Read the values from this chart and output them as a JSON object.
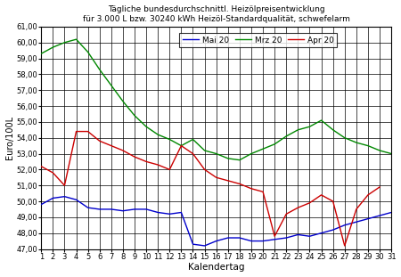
{
  "title_line1": "Tägliche bundesdurchschnittl. Heizölpreisentwicklung",
  "title_line2": "für 3.000 L bzw. 30240 kWh Heizöl-Standardqualität, schwefelarm",
  "xlabel": "Kalendertag",
  "ylabel": "Euro/100L",
  "ylim": [
    47.0,
    61.0
  ],
  "ytick_vals": [
    47.0,
    48.0,
    49.0,
    50.0,
    51.0,
    52.0,
    53.0,
    54.0,
    55.0,
    56.0,
    57.0,
    58.0,
    59.0,
    60.0,
    61.0
  ],
  "ytick_labels": [
    "47,00",
    "48,00",
    "49,00",
    "50,00",
    "51,00",
    "52,00",
    "53,00",
    "54,00",
    "55,00",
    "56,00",
    "57,00",
    "58,00",
    "59,00",
    "60,00",
    "61,00"
  ],
  "xticks": [
    1,
    2,
    3,
    4,
    5,
    6,
    7,
    8,
    9,
    10,
    11,
    12,
    13,
    14,
    15,
    16,
    17,
    18,
    19,
    20,
    21,
    22,
    23,
    24,
    25,
    26,
    27,
    28,
    29,
    30,
    31
  ],
  "series": {
    "Mai 20": {
      "color": "#0000cc",
      "days": [
        1,
        2,
        3,
        4,
        5,
        6,
        7,
        8,
        9,
        10,
        11,
        12,
        13,
        14,
        15,
        16,
        17,
        18,
        19,
        20,
        21,
        22,
        23,
        24,
        25,
        26,
        27,
        28,
        29,
        30,
        31
      ],
      "values": [
        49.8,
        50.2,
        50.3,
        50.1,
        49.6,
        49.5,
        49.5,
        49.4,
        49.5,
        49.5,
        49.3,
        49.2,
        49.3,
        47.3,
        47.2,
        47.5,
        47.7,
        47.7,
        47.5,
        47.5,
        47.6,
        47.7,
        47.9,
        47.8,
        48.0,
        48.2,
        48.5,
        48.7,
        48.9,
        49.1,
        49.3
      ]
    },
    "Mrz 20": {
      "color": "#008800",
      "days": [
        1,
        2,
        3,
        4,
        5,
        6,
        7,
        8,
        9,
        10,
        11,
        12,
        13,
        14,
        15,
        16,
        17,
        18,
        19,
        20,
        21,
        22,
        23,
        24,
        25,
        26,
        27,
        28,
        29,
        30,
        31
      ],
      "values": [
        59.3,
        59.7,
        60.0,
        60.2,
        59.4,
        58.3,
        57.3,
        56.3,
        55.4,
        54.7,
        54.2,
        53.9,
        53.5,
        53.9,
        53.2,
        53.0,
        52.7,
        52.6,
        53.0,
        53.3,
        53.6,
        54.1,
        54.5,
        54.7,
        55.1,
        54.5,
        54.0,
        53.7,
        53.5,
        53.2,
        53.0
      ]
    },
    "Apr 20": {
      "color": "#cc0000",
      "days": [
        1,
        2,
        3,
        4,
        5,
        6,
        7,
        8,
        9,
        10,
        11,
        12,
        13,
        14,
        15,
        16,
        17,
        18,
        19,
        20,
        21,
        22,
        23,
        24,
        25,
        26,
        27,
        28,
        29,
        30
      ],
      "values": [
        52.2,
        51.8,
        51.0,
        54.4,
        54.4,
        53.8,
        53.5,
        53.2,
        52.8,
        52.5,
        52.3,
        52.0,
        53.5,
        53.0,
        52.0,
        51.5,
        51.3,
        51.1,
        50.8,
        50.6,
        47.8,
        49.2,
        49.6,
        49.9,
        50.4,
        50.0,
        47.2,
        49.5,
        50.4,
        50.9
      ]
    }
  }
}
